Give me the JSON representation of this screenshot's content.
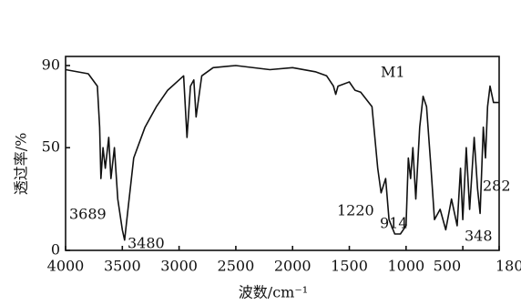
{
  "chart_data": {
    "type": "line",
    "x_label": "波数/cm⁻¹",
    "y_label": "透过率/%",
    "xlim": [
      4000,
      180
    ],
    "ylim": [
      0,
      90
    ],
    "xticks": [
      4000,
      3500,
      3000,
      2500,
      2000,
      1500,
      1000,
      500,
      180
    ],
    "yticks": [
      0,
      50,
      90
    ],
    "annotations": [
      "3689",
      "3480",
      "1220",
      "914",
      "348",
      "282"
    ],
    "series": [
      {
        "name": "M1",
        "color": "#111111",
        "x": [
          4000,
          3800,
          3720,
          3700,
          3689,
          3670,
          3650,
          3620,
          3600,
          3570,
          3540,
          3500,
          3480,
          3450,
          3400,
          3300,
          3200,
          3100,
          3000,
          2960,
          2930,
          2900,
          2870,
          2850,
          2800,
          2700,
          2500,
          2200,
          2000,
          1800,
          1700,
          1640,
          1620,
          1600,
          1500,
          1450,
          1400,
          1300,
          1250,
          1220,
          1180,
          1150,
          1100,
          1050,
          1000,
          980,
          960,
          940,
          914,
          880,
          850,
          820,
          780,
          750,
          700,
          650,
          600,
          550,
          520,
          500,
          470,
          440,
          400,
          370,
          348,
          320,
          300,
          282,
          260,
          230,
          200,
          180
        ],
        "values": [
          88,
          86,
          80,
          60,
          35,
          50,
          40,
          55,
          35,
          50,
          25,
          10,
          5,
          20,
          45,
          60,
          70,
          78,
          83,
          85,
          55,
          80,
          83,
          65,
          85,
          89,
          90,
          88,
          89,
          87,
          85,
          80,
          76,
          80,
          82,
          78,
          77,
          70,
          40,
          28,
          35,
          15,
          8,
          8,
          12,
          45,
          35,
          50,
          25,
          60,
          75,
          70,
          40,
          15,
          20,
          10,
          25,
          12,
          40,
          15,
          50,
          20,
          55,
          30,
          18,
          60,
          45,
          70,
          80,
          72,
          72,
          72
        ]
      }
    ]
  }
}
